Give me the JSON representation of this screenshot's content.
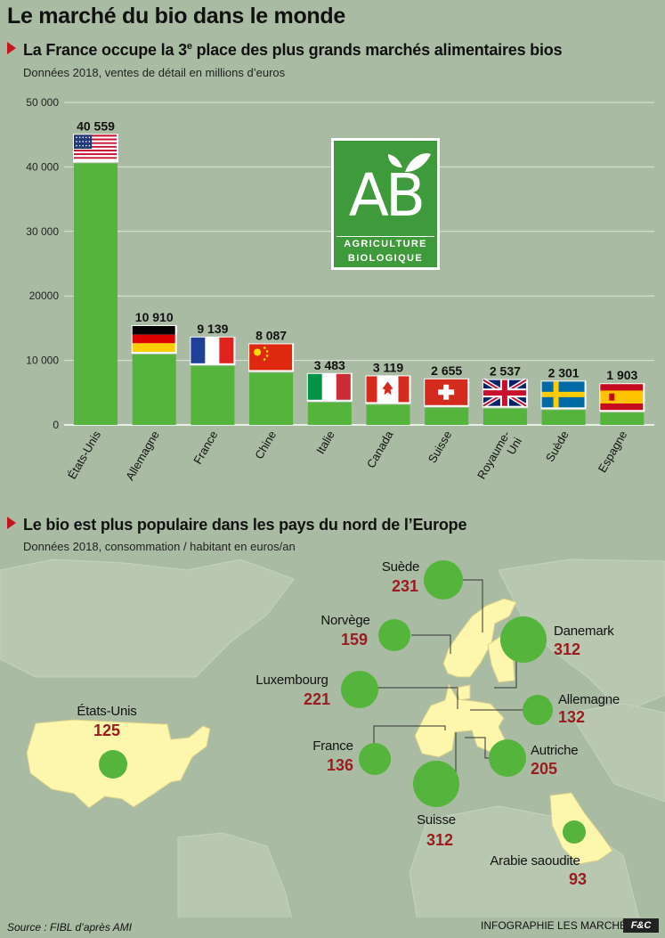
{
  "header": {
    "title": "Le marché du bio dans le monde"
  },
  "section1": {
    "heading_a": "La France  occupe  la 3",
    "heading_sup": "e",
    "heading_b": " place des plus grands marchés alimentaires bios",
    "subtitle": "Données 2018, ventes de détail en millions d’euros"
  },
  "logo": {
    "letters": "AB",
    "line1": "AGRICULTURE",
    "line2": "BIOLOGIQUE"
  },
  "chart_data": {
    "type": "bar",
    "categories": [
      "États-Unis",
      "Allemagne",
      "France",
      "Chine",
      "Italie",
      "Canada",
      "Suisse",
      "Royaume-Uni",
      "Suède",
      "Espagne"
    ],
    "values": [
      40559,
      10910,
      9139,
      8087,
      3483,
      3119,
      2655,
      2537,
      2301,
      1903
    ],
    "value_labels": [
      "40 559",
      "10 910",
      "9 139",
      "8 087",
      "3 483",
      "3 119",
      "2 655",
      "2 537",
      "2 301",
      "1 903"
    ],
    "flags": [
      "usa-flag-icon",
      "germany-flag-icon",
      "france-flag-icon",
      "china-flag-icon",
      "italy-flag-icon",
      "canada-flag-icon",
      "switzerland-flag-icon",
      "uk-flag-icon",
      "sweden-flag-icon",
      "spain-flag-icon"
    ],
    "yticks": [
      0,
      10000,
      20000,
      30000,
      40000,
      50000
    ],
    "ytick_labels": [
      "0",
      "10 000",
      "20000",
      "30 000",
      "40 000",
      "50 000"
    ],
    "ylim": [
      0,
      50000
    ],
    "grid": true,
    "bar_color": "#55b43c"
  },
  "section2": {
    "heading": "Le bio est plus populaire dans les pays du nord de l’Europe",
    "subtitle": "Données 2018, consommation / habitant en euros/an"
  },
  "map_data": {
    "type": "bubble-map",
    "bubble_color": "#55b43c",
    "value_color": "#9b1b1f",
    "points": [
      {
        "name": "Suède",
        "value": 231
      },
      {
        "name": "Norvège",
        "value": 159
      },
      {
        "name": "Danemark",
        "value": 312
      },
      {
        "name": "Luxembourg",
        "value": 221
      },
      {
        "name": "Allemagne",
        "value": 132
      },
      {
        "name": "États-Unis",
        "value": 125
      },
      {
        "name": "France",
        "value": 136
      },
      {
        "name": "Autriche",
        "value": 205
      },
      {
        "name": "Suisse",
        "value": 312
      },
      {
        "name": "Arabie saoudite",
        "value": 93
      }
    ]
  },
  "footer": {
    "source": "Source : FIBL d’après AMI",
    "credit": "INFOGRAPHIE LES MARCHÉS",
    "badge": "F&C"
  }
}
